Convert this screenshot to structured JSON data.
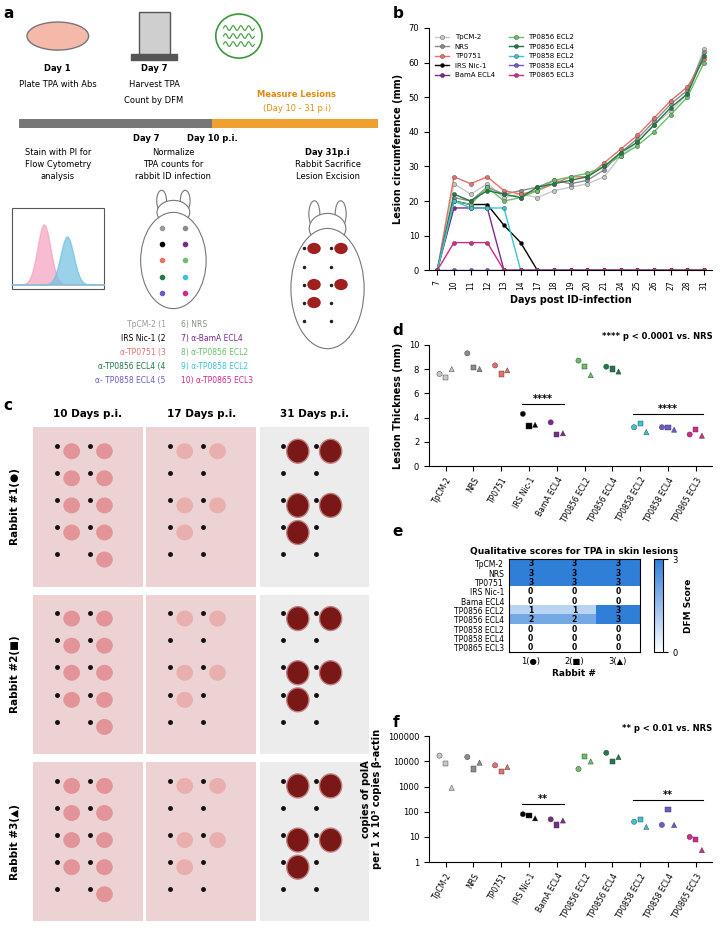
{
  "panel_labels": [
    "a",
    "b",
    "c",
    "d",
    "e",
    "f"
  ],
  "diagram_a": {
    "step1": [
      "Day 1",
      "Plate TPA with Abs"
    ],
    "step2": [
      "Day 7",
      "Harvest TPA",
      "Count by DFM"
    ],
    "measure": [
      "Measure Lesions",
      "(Day 10 - 31 p.i)"
    ],
    "timeline": [
      "Day 7",
      "Day 10 p.i."
    ],
    "flow": [
      "Stain with PI for",
      "Flow Cytometry",
      "analysis"
    ],
    "normalize": [
      "Normalize",
      "TPA counts for",
      "rabbit ID infection"
    ],
    "sacrifice": [
      "Day 31p.i",
      "Rabbit Sacrifice",
      "Lesion Excision"
    ],
    "sites_left": [
      "TpCM-2 (1",
      "IRS Nic-1 (2",
      "α-TP0751 (3",
      "α-TP0856 ECL4 (4",
      "α- TP0858 ECL4 (5"
    ],
    "sites_right": [
      "6) NRS",
      "7) α-BamA ECL4",
      "8) α-TP0856 ECL2",
      "9) α-TP0858 ECL2",
      "10) α-TP0865 ECL3"
    ],
    "colors": [
      "#9a9a9a",
      "#000000",
      "#e8706a",
      "#1e7b45",
      "#6a5acd",
      "#8c8c8c",
      "#7b2a8c",
      "#6abf69",
      "#38c6d6",
      "#d6288a"
    ]
  },
  "photos_c": {
    "columns": [
      "10 Days p.i.",
      "17 Days p.i.",
      "31 Days p.i."
    ],
    "rows": [
      "Rabbit #1(●)",
      "Rabbit #2(■)",
      "Rabbit #3(▲)"
    ]
  },
  "chart_data": [
    {
      "type": "line",
      "xlabel": "Days post ID-infection",
      "ylabel": "Lesion circumference (mm)",
      "categories": [
        "7",
        "10",
        "11",
        "12",
        "13",
        "14",
        "17",
        "18",
        "19",
        "20",
        "21",
        "24",
        "25",
        "26",
        "27",
        "28",
        "31"
      ],
      "ylim": [
        0,
        70
      ],
      "yticks": [
        0,
        10,
        20,
        30,
        40,
        50,
        60,
        70
      ],
      "legend": "upper left",
      "marker": "circle",
      "series": [
        {
          "name": "TpCM-2",
          "color": "#c8c8c8",
          "values": [
            0,
            25,
            22,
            25,
            21,
            22,
            21,
            23,
            24,
            25,
            27,
            33,
            37,
            42,
            46,
            51,
            64
          ]
        },
        {
          "name": "NRS",
          "color": "#8c8c8c",
          "values": [
            0,
            21,
            20,
            24,
            22,
            23,
            24,
            26,
            25,
            26,
            29,
            34,
            38,
            43,
            48,
            52,
            63
          ]
        },
        {
          "name": "TP0751",
          "color": "#e8706a",
          "values": [
            0,
            27,
            25,
            27,
            23,
            22,
            23,
            25,
            27,
            27,
            31,
            35,
            39,
            44,
            49,
            53,
            61
          ]
        },
        {
          "name": "IRS Nic-1",
          "color": "#000000",
          "values": [
            0,
            20,
            19,
            19,
            13,
            8,
            0,
            0,
            0,
            0,
            0,
            0,
            0,
            0,
            0,
            0,
            0
          ]
        },
        {
          "name": "BamA ECL4",
          "color": "#7b2a8c",
          "values": [
            0,
            18,
            18,
            18,
            0,
            0,
            0,
            0,
            0,
            0,
            0,
            0,
            0,
            0,
            0,
            0,
            0
          ]
        },
        {
          "name": "TP0856 ECL2",
          "color": "#6abf69",
          "values": [
            0,
            20,
            19,
            24,
            20,
            21,
            23,
            26,
            27,
            28,
            30,
            33,
            36,
            40,
            45,
            50,
            60
          ]
        },
        {
          "name": "TP0856 ECL4",
          "color": "#1e7b45",
          "values": [
            0,
            22,
            20,
            23,
            22,
            21,
            24,
            25,
            26,
            27,
            30,
            34,
            37,
            42,
            47,
            51,
            62
          ]
        },
        {
          "name": "TP0858 ECL2",
          "color": "#38c6d6",
          "values": [
            0,
            20,
            18,
            18,
            18,
            0,
            0,
            0,
            0,
            0,
            0,
            0,
            0,
            0,
            0,
            0,
            0
          ]
        },
        {
          "name": "TP0858 ECL4",
          "color": "#6a5acd",
          "values": [
            0,
            0,
            0,
            0,
            0,
            0,
            0,
            0,
            0,
            0,
            0,
            0,
            0,
            0,
            0,
            0,
            0
          ]
        },
        {
          "name": "TP0865 ECL3",
          "color": "#d6288a",
          "values": [
            0,
            8,
            8,
            8,
            0,
            0,
            0,
            0,
            0,
            0,
            0,
            0,
            0,
            0,
            0,
            0,
            0
          ]
        }
      ]
    },
    {
      "type": "scatter",
      "ylabel": "Lesion Thickness (mm)",
      "annotation": "**** p < 0.0001 vs. NRS",
      "categories": [
        "TpCM-2",
        "NRS",
        "TP0751",
        "IRS Nic-1",
        "BamA ECL4",
        "TP0856 ECL2",
        "TP0856 ECL4",
        "TP0858 ECL2",
        "TP0858 ECL4",
        "TP0865 ECL3"
      ],
      "colors": [
        "#c8c8c8",
        "#8c8c8c",
        "#e8706a",
        "#000000",
        "#7b2a8c",
        "#6abf69",
        "#1e7b45",
        "#38c6d6",
        "#6a5acd",
        "#d6288a"
      ],
      "ylim": [
        0,
        10
      ],
      "yticks": [
        0,
        2,
        4,
        6,
        8,
        10
      ],
      "brackets": [
        {
          "text": "****",
          "categories": [
            "IRS Nic-1",
            "BamA ECL4"
          ]
        },
        {
          "text": "****",
          "categories": [
            "TP0858 ECL2",
            "TP0865 ECL3"
          ]
        }
      ],
      "series": [
        {
          "marker": "circle",
          "values": [
            7.6,
            9.3,
            8.3,
            4.3,
            3.6,
            8.7,
            8.2,
            3.2,
            3.2,
            2.6
          ]
        },
        {
          "marker": "square",
          "values": [
            7.3,
            8.1,
            7.6,
            3.3,
            2.6,
            8.2,
            8.0,
            3.5,
            3.2,
            3.0
          ]
        },
        {
          "marker": "triangle",
          "values": [
            8.0,
            8.0,
            7.9,
            3.4,
            2.7,
            7.5,
            7.8,
            2.8,
            3.0,
            2.5
          ]
        }
      ]
    },
    {
      "type": "heatmap",
      "title": "Qualitative scores for TPA in skin lesions",
      "xlabel": "Rabbit #",
      "categories": [
        "TpCM-2",
        "NRS",
        "TP0751",
        "IRS Nic-1",
        "Bama ECL4",
        "TP0856 ECL2",
        "TP0856 ECL4",
        "TP0858 ECL2",
        "TP0858 ECL4",
        "TP0865 ECL3"
      ],
      "x": [
        "1(●)",
        "2(■)",
        "3(▲)"
      ],
      "data_labels": true,
      "cells": [
        [
          3,
          3,
          3
        ],
        [
          3,
          3,
          3
        ],
        [
          3,
          3,
          3
        ],
        [
          0,
          0,
          0
        ],
        [
          0,
          0,
          0
        ],
        [
          1,
          1,
          3
        ],
        [
          2,
          2,
          3
        ],
        [
          0,
          0,
          0
        ],
        [
          0,
          0,
          0
        ],
        [
          0,
          0,
          0
        ]
      ],
      "colorbar": {
        "label": "DFM Score",
        "range": [
          0,
          3
        ],
        "ticks": [
          0,
          3
        ]
      }
    },
    {
      "type": "scatter",
      "ylabel": "copies of polA\nper 1 x 10³ copies β-actin",
      "annotation": "** p < 0.01 vs. NRS",
      "categories": [
        "TpCM-2",
        "NRS",
        "TP0751",
        "IRS Nic-1",
        "BamA ECL4",
        "TP0856 ECL2",
        "TP0856 ECL4",
        "TP0858 ECL2",
        "TP0858 ECL4",
        "TP0865 ECL3"
      ],
      "colors": [
        "#c8c8c8",
        "#8c8c8c",
        "#e8706a",
        "#000000",
        "#7b2a8c",
        "#6abf69",
        "#1e7b45",
        "#38c6d6",
        "#6a5acd",
        "#d6288a"
      ],
      "log": "y",
      "ylim": [
        1,
        100000
      ],
      "yticks": [
        1,
        10,
        100,
        1000,
        10000,
        100000
      ],
      "brackets": [
        {
          "text": "**",
          "categories": [
            "IRS Nic-1",
            "BamA ECL4"
          ]
        },
        {
          "text": "**",
          "categories": [
            "TP0858 ECL2",
            "TP0865 ECL3"
          ]
        }
      ],
      "series": [
        {
          "marker": "circle",
          "values": [
            17000,
            15000,
            7000,
            80,
            50,
            5000,
            22000,
            40,
            30,
            10
          ]
        },
        {
          "marker": "square",
          "values": [
            8000,
            5000,
            4000,
            70,
            30,
            16000,
            10000,
            50,
            120,
            8
          ]
        },
        {
          "marker": "triangle",
          "values": [
            900,
            9000,
            6000,
            55,
            45,
            10000,
            15000,
            25,
            30,
            3
          ]
        }
      ]
    }
  ]
}
